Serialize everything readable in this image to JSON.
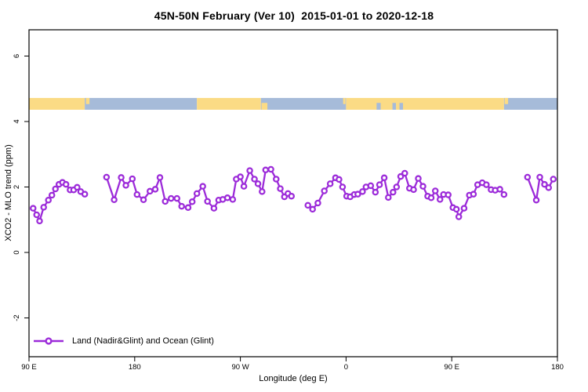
{
  "chart_data": {
    "type": "line",
    "title": "45N-50N February (Ver 10)  2015-01-01 to 2020-12-18",
    "xlabel": "Longitude (deg E)",
    "ylabel": "XCO2 - MLO trend (ppm)",
    "xlim": [
      90,
      540
    ],
    "ylim": [
      -3.2,
      6.8
    ],
    "x_axis_note": "longitude unwrapped eastward: 90E=90, 180=180, 90W=270, 0=360, 90E=450, 180=540",
    "x_ticks": [
      {
        "label": "90 E",
        "deg": 90
      },
      {
        "label": "180",
        "deg": 180
      },
      {
        "label": "90 W",
        "deg": 270
      },
      {
        "label": "0",
        "deg": 360
      },
      {
        "label": "90 E",
        "deg": 450
      },
      {
        "label": "180",
        "deg": 540
      }
    ],
    "y_ticks": [
      {
        "label": "6",
        "value": 6
      },
      {
        "label": "4",
        "value": 4
      },
      {
        "label": "2",
        "value": 2
      },
      {
        "label": "0",
        "value": 0
      },
      {
        "label": "-2",
        "value": -2
      }
    ],
    "grid": false,
    "frame": true,
    "colors": {
      "series": "#9C2BD9",
      "land": "#FBDB85",
      "ocean": "#A6BBD9",
      "frame": "#000000"
    },
    "legend": {
      "position": "bottom-left",
      "entries": [
        {
          "label": "Land (Nadir&Glint) and Ocean (Glint)",
          "color": "#9C2BD9",
          "marker": "open-circle-on-line"
        }
      ]
    },
    "surface_band": {
      "description": "land/ocean surface-type strip drawn at ~4.36-4.72 ppm",
      "value_range": [
        4.36,
        4.72
      ],
      "segments": [
        {
          "start": 90,
          "end": 137.5,
          "type": "land",
          "vpos": "full"
        },
        {
          "start": 137.5,
          "end": 233,
          "type": "ocean",
          "vpos": "full"
        },
        {
          "start": 138.5,
          "end": 141.5,
          "type": "land",
          "vpos": "top"
        },
        {
          "start": 233,
          "end": 287.5,
          "type": "land",
          "vpos": "full"
        },
        {
          "start": 287.5,
          "end": 360,
          "type": "ocean",
          "vpos": "full"
        },
        {
          "start": 288,
          "end": 293,
          "type": "land",
          "vpos": "bottom"
        },
        {
          "start": 357.5,
          "end": 359.5,
          "type": "land",
          "vpos": "top"
        },
        {
          "start": 360,
          "end": 494.5,
          "type": "land",
          "vpos": "full"
        },
        {
          "start": 386,
          "end": 389.5,
          "type": "ocean",
          "vpos": "bottom"
        },
        {
          "start": 399.5,
          "end": 402.5,
          "type": "ocean",
          "vpos": "bottom"
        },
        {
          "start": 405.5,
          "end": 408.5,
          "type": "ocean",
          "vpos": "bottom"
        },
        {
          "start": 494.5,
          "end": 540,
          "type": "ocean",
          "vpos": "full"
        },
        {
          "start": 495,
          "end": 498,
          "type": "land",
          "vpos": "top"
        }
      ]
    },
    "series": [
      {
        "name": "Land (Nadir&Glint) and Ocean (Glint)",
        "color": "#9C2BD9",
        "marker": "open-circle",
        "segments": [
          [
            [
              93.5,
              1.35
            ],
            [
              96.5,
              1.15
            ],
            [
              99,
              0.96
            ],
            [
              102.5,
              1.38
            ],
            [
              106.5,
              1.6
            ],
            [
              109.5,
              1.75
            ],
            [
              112.5,
              1.94
            ],
            [
              115.5,
              2.08
            ],
            [
              118.5,
              2.14
            ],
            [
              121.5,
              2.08
            ],
            [
              125,
              1.91
            ],
            [
              128,
              1.91
            ],
            [
              131,
              1.99
            ],
            [
              134,
              1.86
            ],
            [
              137.5,
              1.78
            ]
          ],
          [
            [
              156,
              2.3
            ],
            [
              162.5,
              1.61
            ],
            [
              168.5,
              2.29
            ],
            [
              172.5,
              2.05
            ],
            [
              178,
              2.25
            ],
            [
              182,
              1.77
            ],
            [
              187.5,
              1.61
            ],
            [
              193,
              1.87
            ],
            [
              197.5,
              1.93
            ],
            [
              201.5,
              2.29
            ],
            [
              206,
              1.56
            ],
            [
              211,
              1.65
            ],
            [
              216,
              1.65
            ],
            [
              220,
              1.41
            ],
            [
              225.5,
              1.37
            ],
            [
              229,
              1.55
            ],
            [
              233,
              1.8
            ],
            [
              238,
              2.02
            ],
            [
              242,
              1.56
            ],
            [
              247.5,
              1.35
            ],
            [
              251.5,
              1.6
            ],
            [
              255,
              1.62
            ],
            [
              259,
              1.67
            ],
            [
              263.5,
              1.62
            ],
            [
              266.5,
              2.24
            ],
            [
              270,
              2.31
            ],
            [
              273,
              2.02
            ],
            [
              278,
              2.5
            ],
            [
              282,
              2.24
            ],
            [
              285,
              2.1
            ],
            [
              288.5,
              1.86
            ],
            [
              291.5,
              2.52
            ],
            [
              296,
              2.54
            ],
            [
              300.5,
              2.24
            ],
            [
              304,
              1.95
            ],
            [
              307.5,
              1.7
            ],
            [
              310.5,
              1.8
            ],
            [
              313.5,
              1.72
            ]
          ],
          [
            [
              327.5,
              1.44
            ],
            [
              331.5,
              1.32
            ],
            [
              336,
              1.51
            ],
            [
              341.5,
              1.88
            ],
            [
              346.5,
              2.1
            ],
            [
              351,
              2.28
            ],
            [
              354,
              2.23
            ],
            [
              357,
              2.0
            ],
            [
              360.5,
              1.72
            ],
            [
              363.5,
              1.7
            ],
            [
              367,
              1.77
            ],
            [
              370,
              1.78
            ],
            [
              374,
              1.86
            ],
            [
              377,
              2.0
            ],
            [
              381,
              2.04
            ],
            [
              385,
              1.84
            ],
            [
              388.5,
              2.07
            ],
            [
              392.5,
              2.28
            ],
            [
              396,
              1.68
            ],
            [
              400,
              1.84
            ],
            [
              403,
              2.0
            ],
            [
              406.5,
              2.32
            ],
            [
              410,
              2.42
            ],
            [
              414,
              1.96
            ],
            [
              417.5,
              1.92
            ],
            [
              421.5,
              2.26
            ],
            [
              425.5,
              2.02
            ],
            [
              429.5,
              1.72
            ],
            [
              432.5,
              1.67
            ],
            [
              436,
              1.88
            ],
            [
              440,
              1.62
            ],
            [
              443,
              1.77
            ],
            [
              447,
              1.76
            ],
            [
              451,
              1.37
            ],
            [
              454,
              1.32
            ],
            [
              456,
              1.09
            ],
            [
              460.5,
              1.35
            ],
            [
              465,
              1.75
            ],
            [
              468.5,
              1.78
            ],
            [
              472,
              2.07
            ],
            [
              476,
              2.13
            ],
            [
              479.5,
              2.07
            ],
            [
              483.5,
              1.92
            ],
            [
              487,
              1.9
            ],
            [
              491,
              1.93
            ],
            [
              494.5,
              1.77
            ]
          ],
          [
            [
              514.5,
              2.3
            ],
            [
              522,
              1.6
            ],
            [
              525,
              2.3
            ],
            [
              529,
              2.08
            ],
            [
              532.5,
              1.98
            ],
            [
              536.5,
              2.24
            ]
          ]
        ]
      }
    ]
  }
}
